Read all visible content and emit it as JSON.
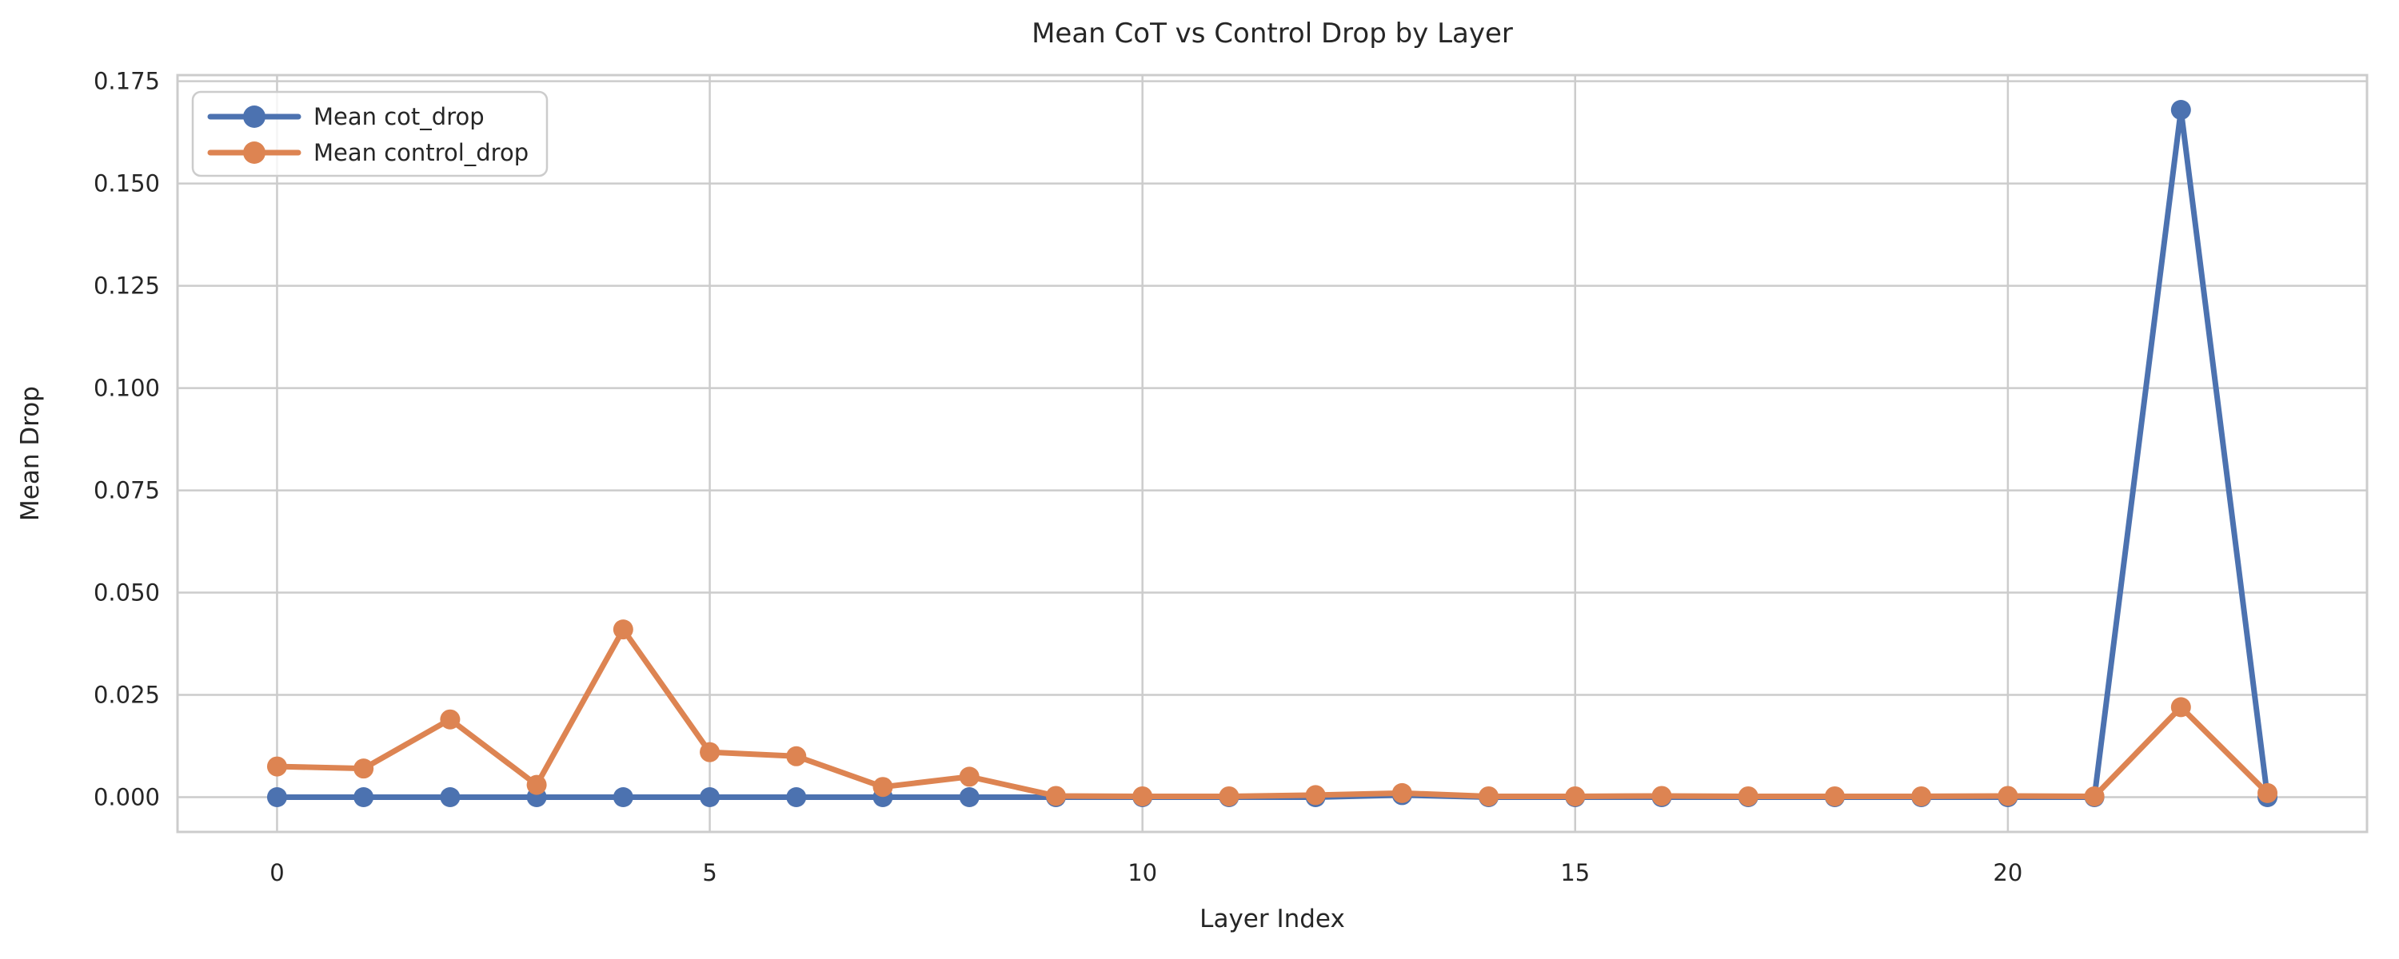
{
  "chart_data": {
    "type": "line",
    "title": "Mean CoT vs Control Drop by Layer",
    "xlabel": "Layer Index",
    "ylabel": "Mean Drop",
    "x": [
      0,
      1,
      2,
      3,
      4,
      5,
      6,
      7,
      8,
      9,
      10,
      11,
      12,
      13,
      14,
      15,
      16,
      17,
      18,
      19,
      20,
      21,
      22,
      23
    ],
    "series": [
      {
        "name": "Mean cot_drop",
        "color": "#4C72B0",
        "values": [
          0.0,
          0.0,
          0.0,
          0.0,
          0.0,
          0.0,
          0.0,
          0.0,
          0.0,
          0.0,
          0.0,
          0.0,
          0.0,
          0.0005,
          0.0,
          0.0,
          0.0,
          0.0,
          0.0,
          0.0,
          0.0,
          0.0,
          0.168,
          0.0
        ]
      },
      {
        "name": "Mean control_drop",
        "color": "#DD8452",
        "values": [
          0.0075,
          0.007,
          0.019,
          0.003,
          0.041,
          0.011,
          0.01,
          0.0025,
          0.005,
          0.0003,
          0.0002,
          0.0002,
          0.0005,
          0.001,
          0.0002,
          0.0002,
          0.0003,
          0.0002,
          0.0002,
          0.0002,
          0.0003,
          0.0002,
          0.022,
          0.001
        ]
      }
    ],
    "xticks": [
      {
        "label": "0",
        "value": 0
      },
      {
        "label": "5",
        "value": 5
      },
      {
        "label": "10",
        "value": 10
      },
      {
        "label": "15",
        "value": 15
      },
      {
        "label": "20",
        "value": 20
      }
    ],
    "yticks": [
      {
        "label": "0.000",
        "value": 0.0
      },
      {
        "label": "0.025",
        "value": 0.025
      },
      {
        "label": "0.050",
        "value": 0.05
      },
      {
        "label": "0.075",
        "value": 0.075
      },
      {
        "label": "0.100",
        "value": 0.1
      },
      {
        "label": "0.125",
        "value": 0.125
      },
      {
        "label": "0.150",
        "value": 0.15
      },
      {
        "label": "0.175",
        "value": 0.175
      }
    ],
    "xlim": [
      -1.15,
      24.15
    ],
    "ylim": [
      -0.0085,
      0.1765
    ],
    "grid": true,
    "legend_position": "upper left",
    "colors": {
      "grid": "#CCCCCC",
      "frame": "#CCCCCC",
      "text": "#262626",
      "background": "#FFFFFF"
    }
  }
}
